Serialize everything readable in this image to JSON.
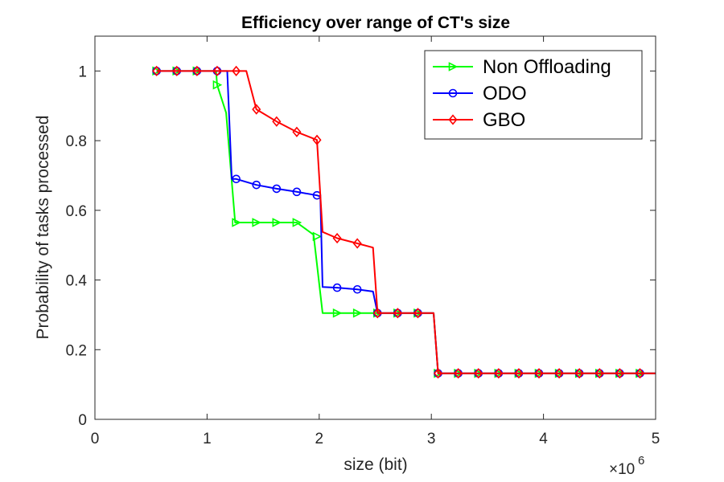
{
  "chart_data": {
    "type": "line",
    "title": "Efficiency over range of CT's size",
    "xlabel": "size (bit)",
    "ylabel": "Probability of tasks processed",
    "x_multiplier_base": "×10",
    "x_multiplier_exp": "6",
    "xlim": [
      0,
      5
    ],
    "ylim": [
      0,
      1.1
    ],
    "xticks": [
      0,
      1,
      2,
      3,
      4,
      5
    ],
    "xtick_labels": [
      "0",
      "1",
      "2",
      "3",
      "4",
      "5"
    ],
    "yticks": [
      0,
      0.2,
      0.4,
      0.6,
      0.8,
      1.0
    ],
    "ytick_labels": [
      "0",
      "0.2",
      "0.4",
      "0.6",
      "0.8",
      "1"
    ],
    "grid": false,
    "legend_position": "top-right",
    "series": [
      {
        "name": "Non Offloading",
        "color": "#00FF00",
        "marker": "triangle-right",
        "line": [
          [
            0.55,
            1
          ],
          [
            1.08,
            1
          ],
          [
            1.09,
            0.96
          ],
          [
            1.17,
            0.88
          ],
          [
            1.25,
            0.565
          ],
          [
            1.8,
            0.565
          ],
          [
            1.95,
            0.53
          ],
          [
            2.03,
            0.305
          ],
          [
            3.02,
            0.305
          ],
          [
            3.06,
            0.132
          ],
          [
            5.0,
            0.132
          ]
        ],
        "markers": [
          [
            0.55,
            1
          ],
          [
            0.73,
            1
          ],
          [
            0.91,
            1
          ],
          [
            1.09,
            0.96
          ],
          [
            1.26,
            0.565
          ],
          [
            1.44,
            0.565
          ],
          [
            1.62,
            0.565
          ],
          [
            1.8,
            0.565
          ],
          [
            1.98,
            0.525
          ],
          [
            2.16,
            0.305
          ],
          [
            2.34,
            0.305
          ],
          [
            2.52,
            0.305
          ],
          [
            2.7,
            0.305
          ],
          [
            2.88,
            0.305
          ],
          [
            3.06,
            0.132
          ],
          [
            3.24,
            0.132
          ],
          [
            3.42,
            0.132
          ],
          [
            3.6,
            0.132
          ],
          [
            3.78,
            0.132
          ],
          [
            3.96,
            0.132
          ],
          [
            4.14,
            0.132
          ],
          [
            4.32,
            0.132
          ],
          [
            4.5,
            0.132
          ],
          [
            4.68,
            0.132
          ],
          [
            4.86,
            0.132
          ]
        ]
      },
      {
        "name": "ODO",
        "color": "#0000FF",
        "marker": "circle",
        "line": [
          [
            0.55,
            1
          ],
          [
            1.18,
            1
          ],
          [
            1.22,
            0.69
          ],
          [
            1.26,
            0.69
          ],
          [
            1.44,
            0.673
          ],
          [
            1.62,
            0.662
          ],
          [
            1.8,
            0.653
          ],
          [
            1.98,
            0.643
          ],
          [
            2.01,
            0.64
          ],
          [
            2.03,
            0.38
          ],
          [
            2.16,
            0.378
          ],
          [
            2.34,
            0.373
          ],
          [
            2.48,
            0.367
          ],
          [
            2.52,
            0.305
          ],
          [
            3.02,
            0.305
          ],
          [
            3.06,
            0.132
          ],
          [
            5.0,
            0.132
          ]
        ],
        "markers": [
          [
            0.55,
            1
          ],
          [
            0.73,
            1
          ],
          [
            0.91,
            1
          ],
          [
            1.09,
            1
          ],
          [
            1.26,
            0.69
          ],
          [
            1.44,
            0.673
          ],
          [
            1.62,
            0.662
          ],
          [
            1.8,
            0.653
          ],
          [
            1.98,
            0.643
          ],
          [
            2.16,
            0.378
          ],
          [
            2.34,
            0.373
          ],
          [
            2.52,
            0.305
          ],
          [
            2.7,
            0.305
          ],
          [
            2.88,
            0.305
          ],
          [
            3.06,
            0.132
          ],
          [
            3.24,
            0.132
          ],
          [
            3.42,
            0.132
          ],
          [
            3.6,
            0.132
          ],
          [
            3.78,
            0.132
          ],
          [
            3.96,
            0.132
          ],
          [
            4.14,
            0.132
          ],
          [
            4.32,
            0.132
          ],
          [
            4.5,
            0.132
          ],
          [
            4.68,
            0.132
          ],
          [
            4.86,
            0.132
          ]
        ]
      },
      {
        "name": "GBO",
        "color": "#FF0000",
        "marker": "diamond",
        "line": [
          [
            0.55,
            1
          ],
          [
            1.35,
            1
          ],
          [
            1.44,
            0.89
          ],
          [
            1.62,
            0.855
          ],
          [
            1.8,
            0.825
          ],
          [
            1.98,
            0.802
          ],
          [
            2.03,
            0.538
          ],
          [
            2.16,
            0.52
          ],
          [
            2.34,
            0.505
          ],
          [
            2.48,
            0.493
          ],
          [
            2.52,
            0.305
          ],
          [
            3.02,
            0.305
          ],
          [
            3.06,
            0.132
          ],
          [
            5.0,
            0.132
          ]
        ],
        "markers": [
          [
            0.55,
            1
          ],
          [
            0.73,
            1
          ],
          [
            0.91,
            1
          ],
          [
            1.09,
            1
          ],
          [
            1.26,
            1
          ],
          [
            1.44,
            0.89
          ],
          [
            1.62,
            0.855
          ],
          [
            1.8,
            0.825
          ],
          [
            1.98,
            0.802
          ],
          [
            2.16,
            0.52
          ],
          [
            2.34,
            0.505
          ],
          [
            2.52,
            0.305
          ],
          [
            2.7,
            0.305
          ],
          [
            2.88,
            0.305
          ],
          [
            3.06,
            0.132
          ],
          [
            3.24,
            0.132
          ],
          [
            3.42,
            0.132
          ],
          [
            3.6,
            0.132
          ],
          [
            3.78,
            0.132
          ],
          [
            3.96,
            0.132
          ],
          [
            4.14,
            0.132
          ],
          [
            4.32,
            0.132
          ],
          [
            4.5,
            0.132
          ],
          [
            4.68,
            0.132
          ],
          [
            4.86,
            0.132
          ]
        ]
      }
    ]
  }
}
